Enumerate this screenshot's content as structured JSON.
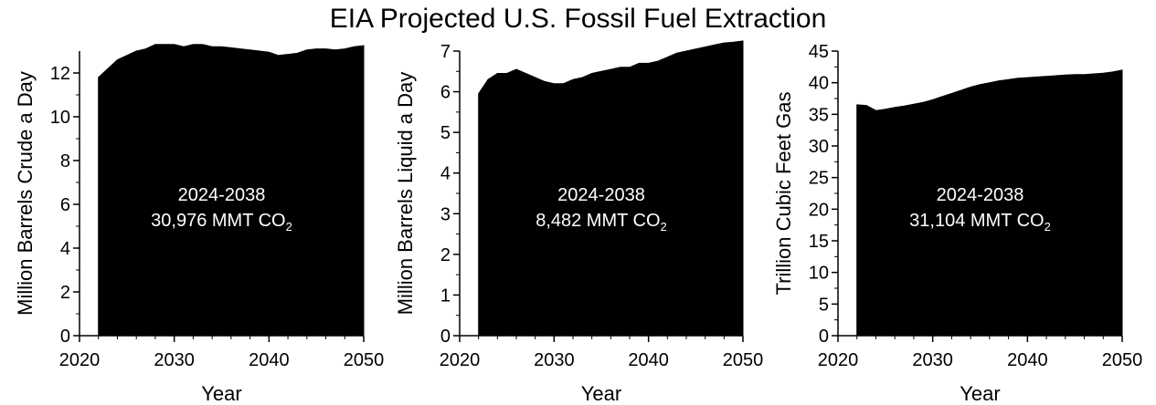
{
  "title": "EIA Projected U.S. Fossil Fuel Extraction",
  "chart_data": [
    {
      "type": "area",
      "ylabel": "Million Barrels Crude a Day",
      "xlabel": "Year",
      "xlim": [
        2020,
        2050
      ],
      "ylim": [
        0,
        13
      ],
      "xticks": [
        2020,
        2030,
        2040,
        2050
      ],
      "yticks": [
        0,
        2,
        4,
        6,
        8,
        10,
        12
      ],
      "annotation": {
        "period": "2024-2038",
        "value": "30,976 MMT CO",
        "subscript": "2"
      },
      "x": [
        2022,
        2023,
        2024,
        2025,
        2026,
        2027,
        2028,
        2029,
        2030,
        2031,
        2032,
        2033,
        2034,
        2035,
        2036,
        2037,
        2038,
        2039,
        2040,
        2041,
        2042,
        2043,
        2044,
        2045,
        2046,
        2047,
        2048,
        2049,
        2050
      ],
      "values": [
        11.8,
        12.2,
        12.6,
        12.8,
        13.0,
        13.1,
        13.3,
        13.3,
        13.3,
        13.2,
        13.3,
        13.3,
        13.2,
        13.2,
        13.15,
        13.1,
        13.05,
        13.0,
        12.95,
        12.8,
        12.85,
        12.9,
        13.05,
        13.1,
        13.1,
        13.05,
        13.1,
        13.2,
        13.25
      ],
      "grid": false,
      "legend": "none"
    },
    {
      "type": "area",
      "ylabel": "Million Barrels Liquid a Day",
      "xlabel": "Year",
      "xlim": [
        2020,
        2050
      ],
      "ylim": [
        0,
        7
      ],
      "xticks": [
        2020,
        2030,
        2040,
        2050
      ],
      "yticks": [
        0,
        1,
        2,
        3,
        4,
        5,
        6,
        7
      ],
      "annotation": {
        "period": "2024-2038",
        "value": "8,482 MMT CO",
        "subscript": "2"
      },
      "x": [
        2022,
        2023,
        2024,
        2025,
        2026,
        2027,
        2028,
        2029,
        2030,
        2031,
        2032,
        2033,
        2034,
        2035,
        2036,
        2037,
        2038,
        2039,
        2040,
        2041,
        2042,
        2043,
        2044,
        2045,
        2046,
        2047,
        2048,
        2049,
        2050
      ],
      "values": [
        5.95,
        6.3,
        6.45,
        6.45,
        6.55,
        6.45,
        6.35,
        6.25,
        6.2,
        6.2,
        6.3,
        6.35,
        6.45,
        6.5,
        6.55,
        6.6,
        6.6,
        6.7,
        6.7,
        6.75,
        6.85,
        6.95,
        7.0,
        7.05,
        7.1,
        7.15,
        7.2,
        7.22,
        7.25
      ],
      "grid": false,
      "legend": "none"
    },
    {
      "type": "area",
      "ylabel": "Trillion Cubic Feet Gas",
      "xlabel": "Year",
      "xlim": [
        2020,
        2050
      ],
      "ylim": [
        0,
        45
      ],
      "xticks": [
        2020,
        2030,
        2040,
        2050
      ],
      "yticks": [
        0,
        5,
        10,
        15,
        20,
        25,
        30,
        35,
        40,
        45
      ],
      "annotation": {
        "period": "2024-2038",
        "value": "31,104 MMT CO",
        "subscript": "2"
      },
      "x": [
        2022,
        2023,
        2024,
        2025,
        2026,
        2027,
        2028,
        2029,
        2030,
        2031,
        2032,
        2033,
        2034,
        2035,
        2036,
        2037,
        2038,
        2039,
        2040,
        2041,
        2042,
        2043,
        2044,
        2045,
        2046,
        2047,
        2048,
        2049,
        2050
      ],
      "values": [
        36.5,
        36.4,
        35.6,
        35.8,
        36.1,
        36.3,
        36.6,
        36.9,
        37.3,
        37.8,
        38.3,
        38.8,
        39.3,
        39.7,
        40.0,
        40.3,
        40.5,
        40.7,
        40.8,
        40.9,
        41.0,
        41.1,
        41.2,
        41.3,
        41.3,
        41.4,
        41.5,
        41.7,
        42.0
      ],
      "grid": false,
      "legend": "none"
    }
  ]
}
